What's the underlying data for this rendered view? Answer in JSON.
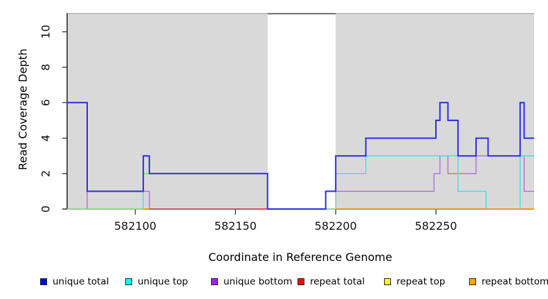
{
  "chart_data": {
    "type": "line",
    "subtype": "step-coverage",
    "title": "",
    "xlabel": "Coordinate in Reference Genome",
    "ylabel": "Read Coverage Depth",
    "xlim": [
      582066,
      582299
    ],
    "ylim": [
      0,
      11.05
    ],
    "x_ticks": [
      582100,
      582150,
      582200,
      582250
    ],
    "y_ticks": [
      0,
      2,
      4,
      6,
      8,
      10
    ],
    "grid": false,
    "legend_position": "bottom",
    "background_shading": {
      "gray_color": "#d9d9d9",
      "gray_regions": [
        [
          582066,
          582166
        ],
        [
          582200,
          582299
        ]
      ],
      "white_gap": [
        582166,
        582200
      ],
      "top_edge_color": "#a6a6a6",
      "gap_top_line_color": "#5a5a5a"
    },
    "series": [
      {
        "name": "unique total",
        "legend_color": "#0000ff",
        "line_color": "#2b2be8",
        "line_width": 2.0,
        "steps": [
          [
            582066,
            6
          ],
          [
            582076,
            1
          ],
          [
            582104,
            3
          ],
          [
            582107,
            2
          ],
          [
            582166,
            0
          ],
          [
            582195,
            1
          ],
          [
            582200,
            3
          ],
          [
            582215,
            4
          ],
          [
            582250,
            5
          ],
          [
            582252,
            6
          ],
          [
            582256,
            5
          ],
          [
            582261,
            3
          ],
          [
            582270,
            4
          ],
          [
            582276,
            3
          ],
          [
            582292,
            6
          ],
          [
            582294,
            4
          ]
        ]
      },
      {
        "name": "unique top",
        "legend_color": "#00ffff",
        "line_color": "#3ae2e2",
        "line_width": 1.4,
        "steps": [
          [
            582066,
            0
          ],
          [
            582104,
            2
          ],
          [
            582166,
            0
          ],
          [
            582200,
            2
          ],
          [
            582215,
            3
          ],
          [
            582261,
            1
          ],
          [
            582275,
            0
          ],
          [
            582292,
            3
          ]
        ]
      },
      {
        "name": "unique bottom",
        "legend_color": "#a020f0",
        "line_color": "#b26be0",
        "line_width": 1.4,
        "steps": [
          [
            582066,
            0
          ],
          [
            582076,
            1
          ],
          [
            582107,
            0
          ],
          [
            582200,
            1
          ],
          [
            582249,
            2
          ],
          [
            582252,
            3
          ],
          [
            582256,
            2
          ],
          [
            582270,
            3
          ],
          [
            582294,
            1
          ]
        ]
      },
      {
        "name": "repeat total",
        "legend_color": "#ff0000",
        "line_color": "#dc3a5e",
        "line_width": 1.2,
        "steps": [
          [
            582066,
            0
          ]
        ]
      },
      {
        "name": "repeat top",
        "legend_color": "#ffff00",
        "line_color": "#e8e84a",
        "line_width": 1.2,
        "steps": [
          [
            582066,
            0
          ]
        ]
      },
      {
        "name": "repeat bottom",
        "legend_color": "#ffa500",
        "line_color": "#ff9500",
        "line_width": 1.6,
        "steps": [
          [
            582066,
            0
          ]
        ]
      }
    ],
    "baseline_visible_segments": [
      {
        "color_key": "overlap_yellow_cyan",
        "color": "#9cd98c",
        "from": 582066,
        "to": 582104
      },
      {
        "color_key": "repeat total",
        "color": "#dc3a5e",
        "from": 582107,
        "to": 582166
      },
      {
        "color_key": "overlap_yellow_cyan",
        "color": "#9cd98c",
        "from": 582195,
        "to": 582200
      },
      {
        "color_key": "repeat bottom",
        "color": "#ff9500",
        "from": 582104,
        "to": 582107
      },
      {
        "color_key": "repeat bottom",
        "color": "#ff9500",
        "from": 582200,
        "to": 582299
      }
    ]
  },
  "legend": {
    "entries": [
      {
        "label": "unique total",
        "color": "#0000ff"
      },
      {
        "label": "unique top",
        "color": "#00ffff"
      },
      {
        "label": "unique bottom",
        "color": "#a020f0"
      },
      {
        "label": "repeat total",
        "color": "#ff0000"
      },
      {
        "label": "repeat top",
        "color": "#ffff00"
      },
      {
        "label": "repeat bottom",
        "color": "#ffa500"
      }
    ]
  },
  "axis_style": {
    "tick_color": "#333333",
    "axis_color": "#000000",
    "tick_label_color": "#111111",
    "tick_label_size": 16
  }
}
